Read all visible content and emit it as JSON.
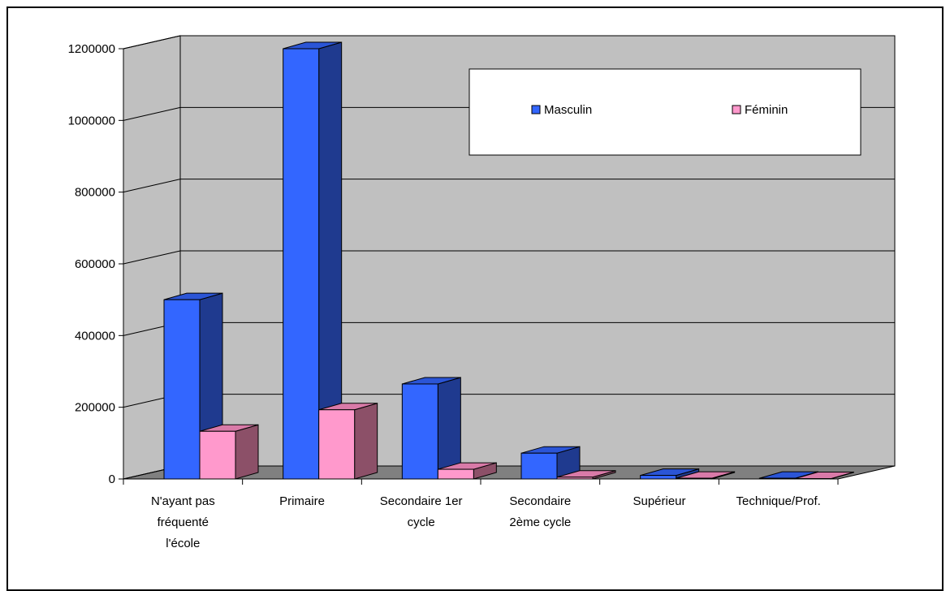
{
  "chart_data": {
    "type": "bar",
    "style": "3d-clustered-column",
    "categories": [
      [
        "N'ayant pas",
        "fréquenté",
        "l'école"
      ],
      [
        "Primaire"
      ],
      [
        "Secondaire 1er",
        "cycle"
      ],
      [
        "Secondaire",
        "2ème cycle"
      ],
      [
        "Supérieur"
      ],
      [
        "Technique/Prof."
      ]
    ],
    "series": [
      {
        "name": "Masculin",
        "values": [
          500000,
          1200000,
          265000,
          72000,
          10000,
          2000
        ]
      },
      {
        "name": "Féminin",
        "values": [
          133000,
          193000,
          27000,
          5000,
          2000,
          1000
        ]
      }
    ],
    "ylim": [
      0,
      1200000
    ],
    "yticks": [
      0,
      200000,
      400000,
      600000,
      800000,
      1000000,
      1200000
    ],
    "ytick_labels": [
      "0",
      "200000",
      "400000",
      "600000",
      "800000",
      "1000000",
      "1200000"
    ],
    "grid": true,
    "legend": "top-right",
    "title": "",
    "xlabel": "",
    "ylabel": ""
  },
  "colors": {
    "wall": "#c0c0c0",
    "floor": "#808080",
    "masculin_front": "#3366ff",
    "masculin_side": "#1f3a8f",
    "masculin_top": "#2b55d6",
    "feminin_front": "#ff99cc",
    "feminin_side": "#8c5068",
    "feminin_top": "#d97aa8"
  }
}
